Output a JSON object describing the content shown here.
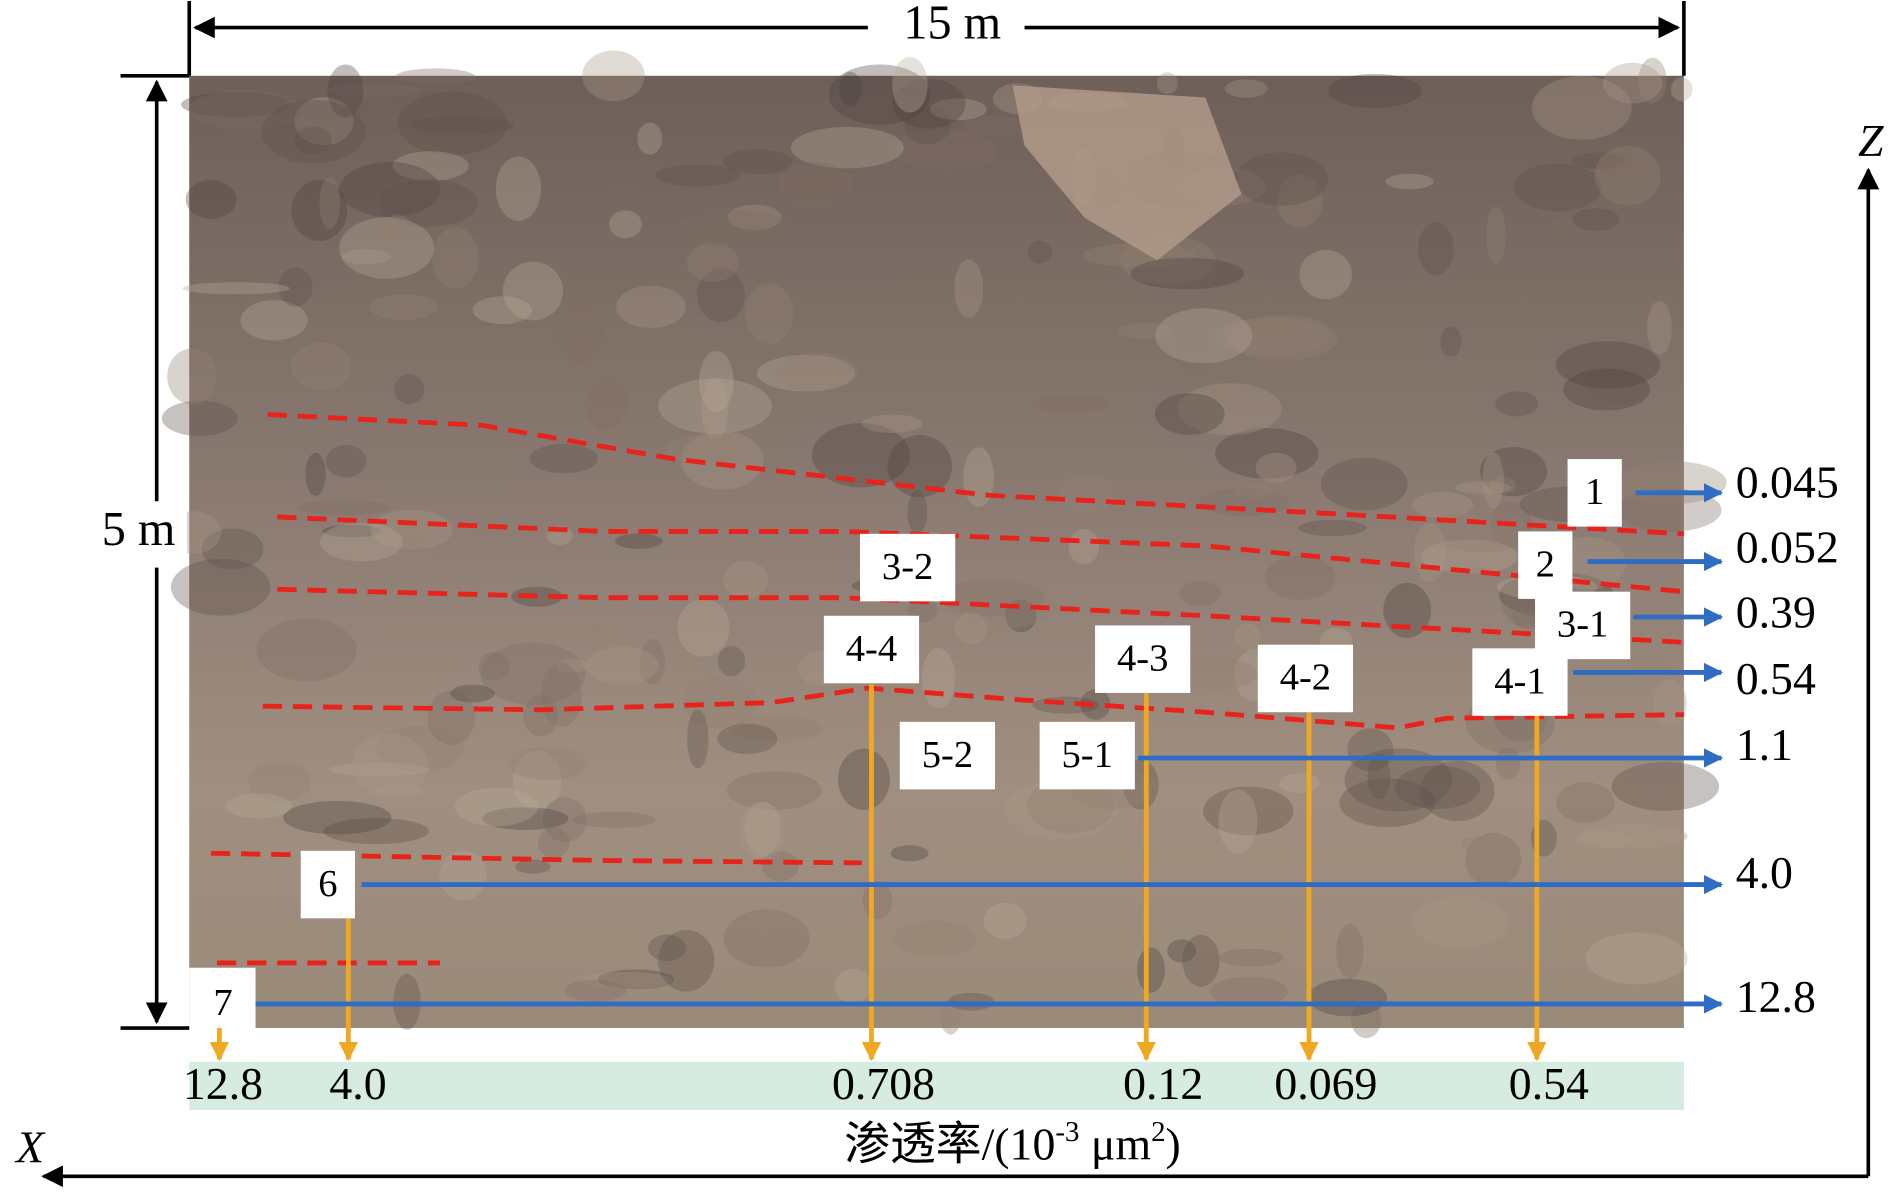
{
  "dimensions": {
    "width": "15 m",
    "height": "5 m"
  },
  "axes": {
    "z": "Z",
    "x": "X"
  },
  "layers": [
    {
      "label": "1",
      "right_value": "0.045"
    },
    {
      "label": "2",
      "right_value": "0.052"
    },
    {
      "label": "3-1",
      "right_value": "0.39"
    },
    {
      "label": "3-2"
    },
    {
      "label": "4-4",
      "bottom_value": "0.708"
    },
    {
      "label": "4-3",
      "bottom_value": "0.12"
    },
    {
      "label": "4-2",
      "bottom_value": "0.069"
    },
    {
      "label": "4-1",
      "right_value": "0.54",
      "bottom_value": "0.54"
    },
    {
      "label": "5-2"
    },
    {
      "label": "5-1",
      "right_value": "1.1"
    },
    {
      "label": "6",
      "right_value": "4.0",
      "bottom_value": "4.0"
    },
    {
      "label": "7",
      "right_value": "12.8",
      "bottom_value": "12.8"
    }
  ],
  "axis_title": {
    "text": "渗透率/(10",
    "exp": "-3",
    "unit": " μm",
    "unit_exp": "2",
    "close": ")"
  }
}
